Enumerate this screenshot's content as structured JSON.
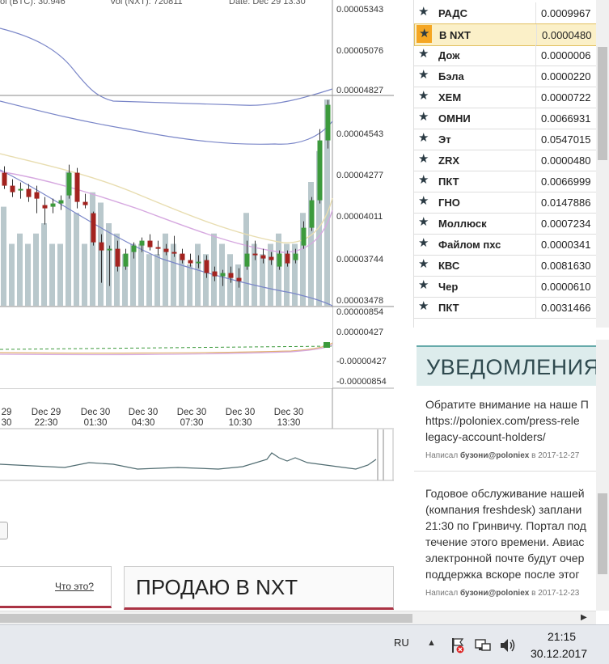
{
  "chart_info": {
    "pair_volume": "ol (BTC):  30.946",
    "nxt_volume": "Vol (NXT):  720811",
    "date": "Date:  Dec 29 13:30"
  },
  "chart_data": {
    "type": "candlestick",
    "price_axis_labels": [
      "0.00005343",
      "0.00005076",
      "0.00004827",
      "0.00004543",
      "0.00004277",
      "0.00004011",
      "0.00003744",
      "0.00003478"
    ],
    "indicator_axis_labels": [
      "0.00000854",
      "0.00000427",
      "-0.00000427",
      "-0.00000854"
    ],
    "time_labels": [
      {
        "top": "29",
        "bottom": "30"
      },
      {
        "top": "Dec 29",
        "bottom": "22:30"
      },
      {
        "top": "Dec 30",
        "bottom": "01:30"
      },
      {
        "top": "Dec 30",
        "bottom": "04:30"
      },
      {
        "top": "Dec 30",
        "bottom": "07:30"
      },
      {
        "top": "Dec 30",
        "bottom": "10:30"
      },
      {
        "top": "Dec 30",
        "bottom": "13:30"
      }
    ],
    "ylim": [
      3.478e-05,
      5.343e-05
    ],
    "colors": {
      "up": "#3c9a3c",
      "down": "#a3231f",
      "volume": "#b9c8cc",
      "bollinger": "#7a86c8",
      "ema1": "#e8ddb0",
      "ema2": "#d6a8e0"
    },
    "candles": [
      {
        "o": 4.3e-05,
        "h": 4.34e-05,
        "l": 4.2e-05,
        "c": 4.22e-05
      },
      {
        "o": 4.22e-05,
        "h": 4.26e-05,
        "l": 4.15e-05,
        "c": 4.18e-05
      },
      {
        "o": 4.19e-05,
        "h": 4.24e-05,
        "l": 4.14e-05,
        "c": 4.2e-05
      },
      {
        "o": 4.2e-05,
        "h": 4.23e-05,
        "l": 4.12e-05,
        "c": 4.15e-05
      },
      {
        "o": 4.18e-05,
        "h": 4.22e-05,
        "l": 4.05e-05,
        "c": 4.14e-05
      },
      {
        "o": 4.1e-05,
        "h": 4.15e-05,
        "l": 3.98e-05,
        "c": 4.08e-05
      },
      {
        "o": 4.09e-05,
        "h": 4.14e-05,
        "l": 4.05e-05,
        "c": 4.11e-05
      },
      {
        "o": 4.11e-05,
        "h": 4.16e-05,
        "l": 4.07e-05,
        "c": 4.13e-05
      },
      {
        "o": 4.16e-05,
        "h": 4.35e-05,
        "l": 4.14e-05,
        "c": 4.3e-05
      },
      {
        "o": 4.3e-05,
        "h": 4.33e-05,
        "l": 4.08e-05,
        "c": 4.12e-05
      },
      {
        "o": 4.12e-05,
        "h": 4.17e-05,
        "l": 4.08e-05,
        "c": 4.1e-05
      },
      {
        "o": 4.05e-05,
        "h": 4.06e-05,
        "l": 3.85e-05,
        "c": 3.87e-05
      },
      {
        "o": 3.87e-05,
        "h": 3.92e-05,
        "l": 3.62e-05,
        "c": 3.82e-05
      },
      {
        "o": 3.82e-05,
        "h": 3.85e-05,
        "l": 3.6e-05,
        "c": 3.83e-05
      },
      {
        "o": 3.83e-05,
        "h": 3.88e-05,
        "l": 3.69e-05,
        "c": 3.72e-05
      },
      {
        "o": 3.72e-05,
        "h": 3.83e-05,
        "l": 3.7e-05,
        "c": 3.8e-05
      },
      {
        "o": 3.81e-05,
        "h": 3.87e-05,
        "l": 3.77e-05,
        "c": 3.85e-05
      },
      {
        "o": 3.85e-05,
        "h": 3.9e-05,
        "l": 3.81e-05,
        "c": 3.88e-05
      },
      {
        "o": 3.88e-05,
        "h": 3.92e-05,
        "l": 3.82e-05,
        "c": 3.84e-05
      },
      {
        "o": 3.84e-05,
        "h": 3.88e-05,
        "l": 3.79e-05,
        "c": 3.83e-05
      },
      {
        "o": 3.83e-05,
        "h": 3.86e-05,
        "l": 3.79e-05,
        "c": 3.81e-05
      },
      {
        "o": 3.81e-05,
        "h": 3.91e-05,
        "l": 3.78e-05,
        "c": 3.8e-05
      },
      {
        "o": 3.8e-05,
        "h": 3.83e-05,
        "l": 3.74e-05,
        "c": 3.76e-05
      },
      {
        "o": 3.76e-05,
        "h": 3.8e-05,
        "l": 3.72e-05,
        "c": 3.74e-05
      },
      {
        "o": 3.74e-05,
        "h": 3.79e-05,
        "l": 3.71e-05,
        "c": 3.75e-05
      },
      {
        "o": 3.76e-05,
        "h": 3.79e-05,
        "l": 3.65e-05,
        "c": 3.68e-05
      },
      {
        "o": 3.69e-05,
        "h": 3.72e-05,
        "l": 3.63e-05,
        "c": 3.66e-05
      },
      {
        "o": 3.66e-05,
        "h": 3.7e-05,
        "l": 3.6e-05,
        "c": 3.68e-05
      },
      {
        "o": 3.68e-05,
        "h": 3.72e-05,
        "l": 3.62e-05,
        "c": 3.65e-05
      },
      {
        "o": 3.65e-05,
        "h": 3.71e-05,
        "l": 3.59e-05,
        "c": 3.63e-05
      },
      {
        "o": 3.72e-05,
        "h": 3.88e-05,
        "l": 3.7e-05,
        "c": 3.8e-05
      },
      {
        "o": 3.8e-05,
        "h": 3.88e-05,
        "l": 3.76e-05,
        "c": 3.79e-05
      },
      {
        "o": 3.79e-05,
        "h": 3.83e-05,
        "l": 3.74e-05,
        "c": 3.77e-05
      },
      {
        "o": 3.78e-05,
        "h": 3.81e-05,
        "l": 3.73e-05,
        "c": 3.76e-05
      },
      {
        "o": 3.72e-05,
        "h": 3.82e-05,
        "l": 3.7e-05,
        "c": 3.8e-05
      },
      {
        "o": 3.8e-05,
        "h": 3.82e-05,
        "l": 3.72e-05,
        "c": 3.74e-05
      },
      {
        "o": 3.76e-05,
        "h": 3.83e-05,
        "l": 3.74e-05,
        "c": 3.8e-05
      },
      {
        "o": 3.85e-05,
        "h": 4e-05,
        "l": 3.83e-05,
        "c": 3.96e-05
      },
      {
        "o": 3.96e-05,
        "h": 4.15e-05,
        "l": 3.94e-05,
        "c": 4.13e-05
      },
      {
        "o": 4.13e-05,
        "h": 4.57e-05,
        "l": 4.11e-05,
        "c": 4.5e-05
      },
      {
        "o": 4.5e-05,
        "h": 4.75e-05,
        "l": 4.45e-05,
        "c": 4.72e-05
      }
    ],
    "volumes": [
      0.48,
      0.3,
      0.35,
      0.3,
      0.35,
      0.4,
      0.3,
      0.3,
      0.65,
      0.45,
      0.3,
      0.55,
      0.5,
      0.4,
      0.35,
      0.25,
      0.3,
      0.3,
      0.25,
      0.25,
      0.35,
      0.3,
      0.25,
      0.2,
      0.3,
      0.25,
      0.35,
      0.3,
      0.25,
      0.2,
      0.45,
      0.3,
      0.25,
      0.3,
      0.35,
      0.3,
      0.3,
      0.45,
      0.6,
      0.75,
      1.0
    ]
  },
  "markets": [
    {
      "coin": "РАДС",
      "price": "0.0009967"
    },
    {
      "coin": "В NXT",
      "price": "0.0000480",
      "selected": true
    },
    {
      "coin": "Дож",
      "price": "0.0000006"
    },
    {
      "coin": "Бэла",
      "price": "0.0000220"
    },
    {
      "coin": "ХЕМ",
      "price": "0.0000722"
    },
    {
      "coin": "ОМНИ",
      "price": "0.0066931"
    },
    {
      "coin": "Эт",
      "price": "0.0547015"
    },
    {
      "coin": "ZRX",
      "price": "0.0000480"
    },
    {
      "coin": "ПКТ",
      "price": "0.0066999"
    },
    {
      "coin": "ГНО",
      "price": "0.0147886"
    },
    {
      "coin": "Моллюск",
      "price": "0.0007234"
    },
    {
      "coin": "Файлом пхс",
      "price": "0.0000341"
    },
    {
      "coin": "КВС",
      "price": "0.0081630"
    },
    {
      "coin": "Чер",
      "price": "0.0000610"
    },
    {
      "coin": "ПКТ",
      "price": "0.0031466"
    }
  ],
  "notifications": {
    "title": "УВЕДОМЛЕНИЯ",
    "items": [
      {
        "lines": [
          "Обратите внимание на наше П",
          "https://poloniex.com/press-rele",
          "legacy-account-holders/"
        ],
        "meta_prefix": "Написал ",
        "author": "бузони@poloniex",
        "meta_suffix": " в 2017-12-27"
      },
      {
        "lines": [
          "Годовое обслуживание нашей",
          "(компания freshdesk) заплани",
          "21:30 по Гринвичу. Портал под",
          "течение этого времени. Авиас",
          "электронной почте будут очер",
          "поддержка вскоре после этог"
        ],
        "meta_prefix": "Написал ",
        "author": "бузони@poloniex",
        "meta_suffix": " в 2017-12-23"
      }
    ]
  },
  "order": {
    "whats_this": "Что это?",
    "sell_title": "ПРОДАЮ В NXT"
  },
  "taskbar": {
    "lang": "RU",
    "time": "21:15",
    "date": "30.12.2017"
  }
}
